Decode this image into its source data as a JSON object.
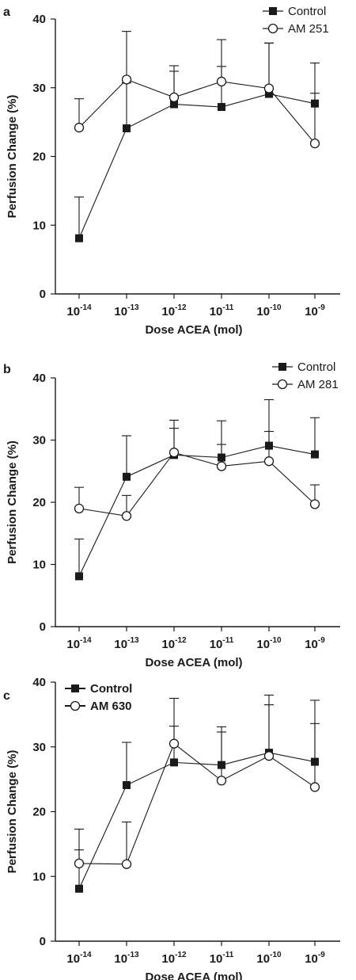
{
  "chart_data": [
    {
      "type": "line",
      "panel_label": "a",
      "xlabel": "Dose ACEA (mol)",
      "ylabel": "Perfusion Change (%)",
      "categories": [
        "10",
        "10",
        "10",
        "10",
        "10",
        "10"
      ],
      "category_exponents": [
        "-14",
        "-13",
        "-12",
        "-11",
        "-10",
        "-9"
      ],
      "ylim": [
        0,
        40
      ],
      "yticks": [
        "0",
        "10",
        "20",
        "30",
        "40"
      ],
      "legend_position": "top-right",
      "bold_legend": false,
      "series": [
        {
          "name": "Control",
          "marker": "filled-square",
          "values": [
            8.1,
            24.1,
            27.6,
            27.2,
            29.1,
            27.7
          ],
          "error": [
            6.0,
            6.6,
            4.8,
            5.9,
            7.4,
            5.9
          ]
        },
        {
          "name": "AM 251",
          "marker": "open-circle",
          "values": [
            24.2,
            31.2,
            28.6,
            30.9,
            29.9,
            21.9
          ],
          "error": [
            4.2,
            7.0,
            4.6,
            6.1,
            6.6,
            7.3
          ]
        }
      ]
    },
    {
      "type": "line",
      "panel_label": "b",
      "xlabel": "Dose ACEA (mol)",
      "ylabel": "Perfusion Change (%)",
      "categories": [
        "10",
        "10",
        "10",
        "10",
        "10",
        "10"
      ],
      "category_exponents": [
        "-14",
        "-13",
        "-12",
        "-11",
        "-10",
        "-9"
      ],
      "ylim": [
        0,
        40
      ],
      "yticks": [
        "0",
        "10",
        "20",
        "30",
        "40"
      ],
      "legend_position": "top-right",
      "bold_legend": false,
      "series": [
        {
          "name": "Control",
          "marker": "filled-square",
          "values": [
            8.1,
            24.1,
            27.6,
            27.2,
            29.1,
            27.7
          ],
          "error": [
            6.0,
            6.6,
            5.6,
            5.9,
            7.4,
            5.9
          ]
        },
        {
          "name": "AM 281",
          "marker": "open-circle",
          "values": [
            19.0,
            17.8,
            28.0,
            25.8,
            26.6,
            19.7
          ],
          "error": [
            3.4,
            3.3,
            3.9,
            3.5,
            4.8,
            3.1
          ]
        }
      ]
    },
    {
      "type": "line",
      "panel_label": "c",
      "xlabel": "Dose ACEA (mol)",
      "ylabel": "Perfusion Change (%)",
      "categories": [
        "10",
        "10",
        "10",
        "10",
        "10",
        "10"
      ],
      "category_exponents": [
        "-14",
        "-13",
        "-12",
        "-11",
        "-10",
        "-9"
      ],
      "ylim": [
        0,
        40
      ],
      "yticks": [
        "0",
        "10",
        "20",
        "30",
        "40"
      ],
      "legend_position": "top-left",
      "bold_legend": true,
      "series": [
        {
          "name": "Control",
          "marker": "filled-square",
          "values": [
            8.1,
            24.1,
            27.6,
            27.2,
            29.1,
            27.7
          ],
          "error": [
            6.0,
            6.6,
            5.6,
            5.9,
            7.4,
            5.9
          ]
        },
        {
          "name": "AM 630",
          "marker": "open-circle",
          "values": [
            12.0,
            11.9,
            30.5,
            24.8,
            28.6,
            23.8
          ],
          "error": [
            5.3,
            6.5,
            7.0,
            7.5,
            9.4,
            13.4
          ]
        }
      ]
    }
  ]
}
